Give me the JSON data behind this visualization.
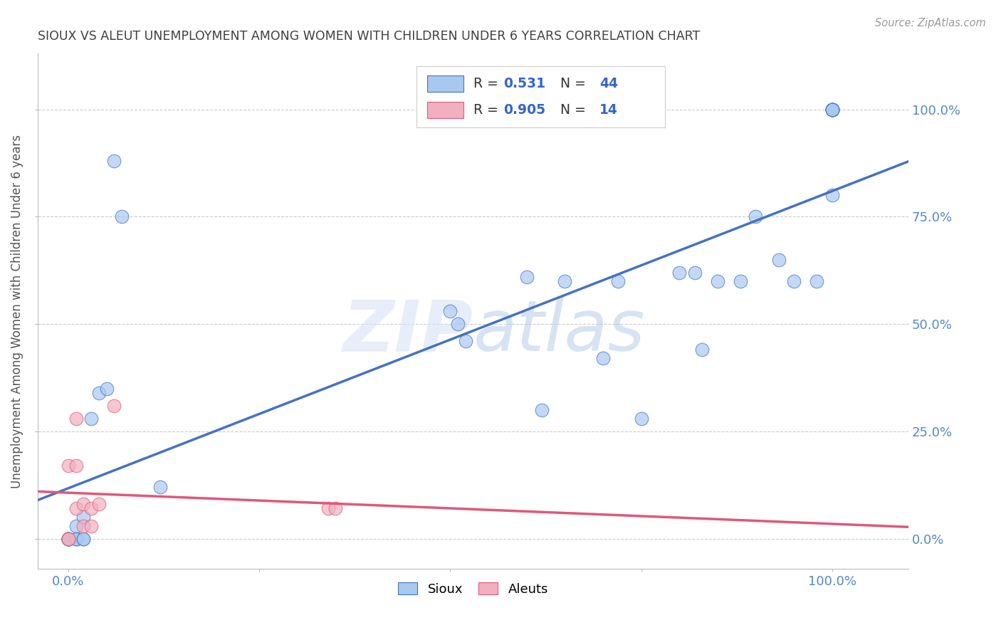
{
  "title": "SIOUX VS ALEUT UNEMPLOYMENT AMONG WOMEN WITH CHILDREN UNDER 6 YEARS CORRELATION CHART",
  "source": "Source: ZipAtlas.com",
  "ylabel": "Unemployment Among Women with Children Under 6 years",
  "watermark": "ZIPatlas",
  "sioux_x": [
    0.0,
    0.0,
    0.0,
    0.0,
    0.0,
    0.01,
    0.01,
    0.01,
    0.01,
    0.02,
    0.02,
    0.02,
    0.03,
    0.04,
    0.05,
    0.06,
    0.07,
    0.12,
    0.5,
    0.51,
    0.52,
    0.6,
    0.62,
    0.65,
    0.7,
    0.72,
    0.75,
    0.8,
    0.82,
    0.83,
    0.85,
    0.88,
    0.9,
    0.93,
    0.95,
    0.98,
    1.0,
    1.0,
    1.0,
    1.0,
    1.0,
    1.0,
    1.0,
    1.0
  ],
  "sioux_y": [
    0.0,
    0.0,
    0.0,
    0.0,
    0.0,
    0.0,
    0.0,
    0.0,
    0.03,
    0.0,
    0.0,
    0.05,
    0.28,
    0.34,
    0.35,
    0.88,
    0.75,
    0.12,
    0.53,
    0.5,
    0.46,
    0.61,
    0.3,
    0.6,
    0.42,
    0.6,
    0.28,
    0.62,
    0.62,
    0.44,
    0.6,
    0.6,
    0.75,
    0.65,
    0.6,
    0.6,
    1.0,
    1.0,
    1.0,
    1.0,
    1.0,
    1.0,
    1.0,
    0.8
  ],
  "aleut_x": [
    0.0,
    0.0,
    0.0,
    0.01,
    0.01,
    0.01,
    0.02,
    0.02,
    0.03,
    0.03,
    0.04,
    0.06,
    0.34,
    0.35
  ],
  "aleut_y": [
    0.0,
    0.0,
    0.17,
    0.07,
    0.17,
    0.28,
    0.03,
    0.08,
    0.03,
    0.07,
    0.08,
    0.31,
    0.07,
    0.07
  ],
  "sioux_R": 0.531,
  "sioux_N": 44,
  "aleut_R": 0.905,
  "aleut_N": 14,
  "sioux_color": "#a8c8f0",
  "aleut_color": "#f0b0c0",
  "sioux_line_color": "#4472c4",
  "aleut_line_color": "#e05878",
  "bg_color": "#ffffff",
  "grid_color": "#cccccc",
  "title_color": "#404040",
  "axis_tick_color": "#5588cc",
  "ytick_labels_right": [
    "100.0%",
    "75.0%",
    "50.0%",
    "25.0%",
    "0.0%"
  ],
  "ytick_positions": [
    1.0,
    0.75,
    0.5,
    0.25,
    0.0
  ],
  "xlim": [
    -0.04,
    1.1
  ],
  "ylim": [
    -0.07,
    1.13
  ]
}
